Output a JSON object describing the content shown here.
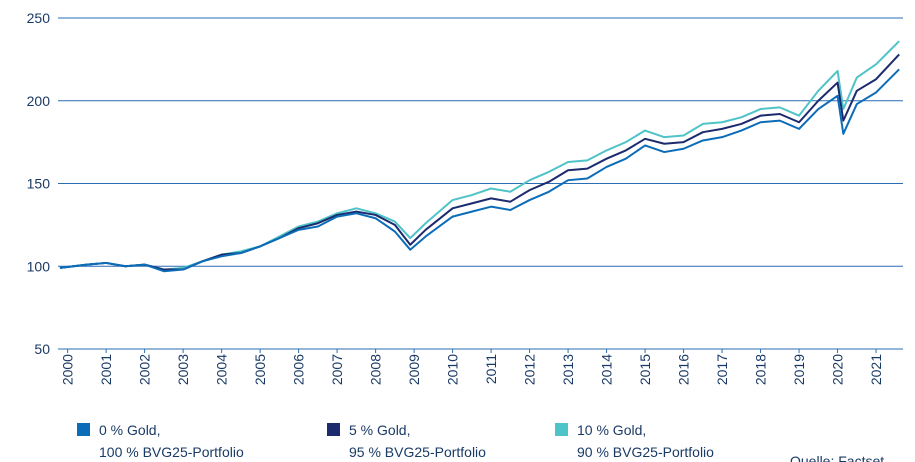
{
  "chart_data": {
    "type": "line",
    "x": [
      1999.8,
      2000.5,
      2001.0,
      2001.5,
      2002.0,
      2002.5,
      2003.0,
      2003.5,
      2004.0,
      2004.5,
      2005.0,
      2005.5,
      2006.0,
      2006.5,
      2007.0,
      2007.5,
      2008.0,
      2008.5,
      2008.9,
      2009.3,
      2010.0,
      2010.5,
      2011.0,
      2011.5,
      2012.0,
      2012.5,
      2013.0,
      2013.5,
      2014.0,
      2014.5,
      2015.0,
      2015.5,
      2016.0,
      2016.5,
      2017.0,
      2017.5,
      2018.0,
      2018.5,
      2019.0,
      2019.5,
      2020.0,
      2020.15,
      2020.5,
      2021.0,
      2021.6
    ],
    "series": [
      {
        "name": "0 % Gold,\n100 % BVG25-Portfolio",
        "color": "#0b6cb8",
        "values": [
          99,
          101,
          102,
          100,
          101,
          97,
          98,
          103,
          106,
          108,
          112,
          117,
          122,
          124,
          130,
          132,
          129,
          121,
          110,
          118,
          130,
          133,
          136,
          134,
          140,
          145,
          152,
          153,
          160,
          165,
          173,
          169,
          171,
          176,
          178,
          182,
          187,
          188,
          183,
          195,
          203,
          180,
          198,
          205,
          219
        ]
      },
      {
        "name": "5 % Gold,\n95 % BVG25-Portfolio",
        "color": "#1c2a6e",
        "values": [
          99,
          101,
          102,
          100,
          101,
          98,
          98,
          103,
          107,
          108,
          112,
          117,
          123,
          126,
          131,
          133,
          131,
          125,
          113,
          122,
          135,
          138,
          141,
          139,
          146,
          151,
          158,
          159,
          165,
          170,
          177,
          174,
          175,
          181,
          183,
          186,
          191,
          192,
          187,
          200,
          211,
          188,
          206,
          213,
          228
        ]
      },
      {
        "name": "10 % Gold,\n90 % BVG25-Portfolio",
        "color": "#4ec3c8",
        "values": [
          99,
          101,
          102,
          100,
          101,
          98,
          99,
          103,
          107,
          109,
          112,
          118,
          124,
          127,
          132,
          135,
          132,
          127,
          117,
          126,
          140,
          143,
          147,
          145,
          152,
          157,
          163,
          164,
          170,
          175,
          182,
          178,
          179,
          186,
          187,
          190,
          195,
          196,
          191,
          206,
          218,
          195,
          214,
          222,
          236
        ]
      }
    ],
    "xlim": [
      1999.75,
      2021.7
    ],
    "xticks": [
      2000,
      2001,
      2002,
      2003,
      2004,
      2005,
      2006,
      2007,
      2008,
      2009,
      2010,
      2011,
      2012,
      2013,
      2014,
      2015,
      2016,
      2017,
      2018,
      2019,
      2020,
      2021
    ],
    "ylim": [
      50,
      250
    ],
    "yticks": [
      50,
      100,
      150,
      200,
      250
    ],
    "grid": true,
    "source": "Quelle: Factset"
  }
}
